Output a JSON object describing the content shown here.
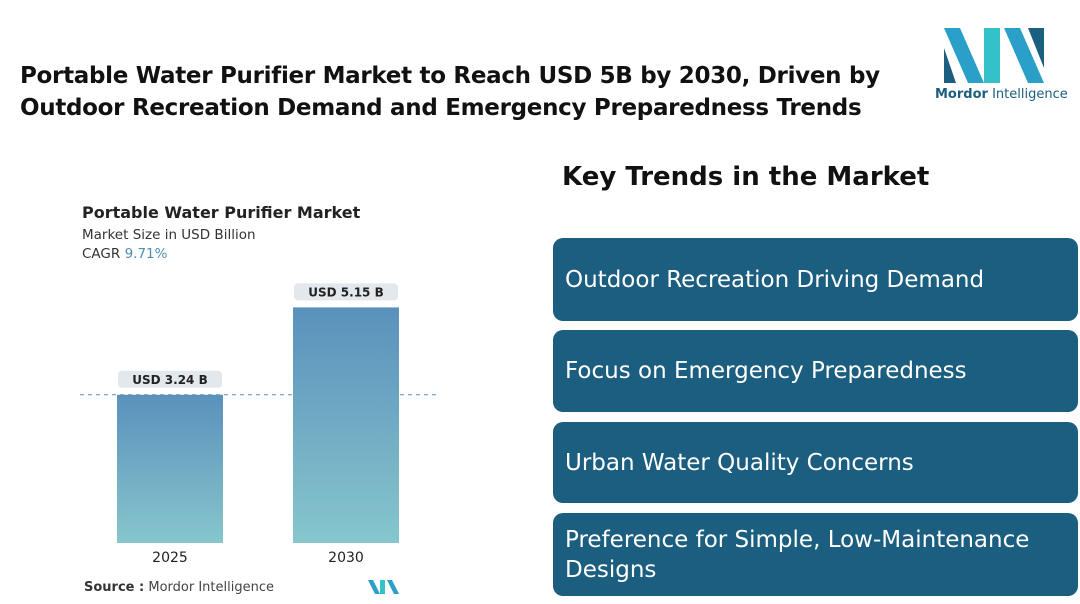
{
  "header": {
    "title": "Portable Water Purifier Market to Reach USD 5B by 2030, Driven by Outdoor Recreation Demand and Emergency Preparedness Trends"
  },
  "logo": {
    "name": "Mordor",
    "suffix": "Intelligence"
  },
  "chart_data": {
    "type": "bar",
    "title": "Portable Water Purifier Market",
    "subtitle": "Market Size in USD Billion",
    "cagr_label": "CAGR",
    "cagr_value": "9.71%",
    "categories": [
      "2025",
      "2030"
    ],
    "values": [
      3.24,
      5.15
    ],
    "value_labels": [
      "USD 3.24 B",
      "USD 5.15 B"
    ]
  },
  "source": {
    "label": "Source :",
    "name": "Mordor Intelligence"
  },
  "trends": {
    "title": "Key Trends in the Market",
    "items": [
      "Outdoor Recreation Driving Demand",
      "Focus on Emergency Preparedness",
      "Urban Water Quality Concerns",
      "Preference for Simple, Low-Maintenance Designs"
    ]
  }
}
